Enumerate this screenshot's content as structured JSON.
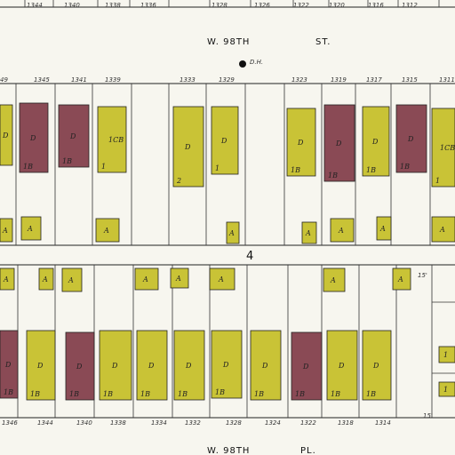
{
  "streets": {
    "top": "W. 98TH",
    "top_suffix": "ST.",
    "bottom": "W. 98TH",
    "bottom_suffix": "PL."
  },
  "block_number": "4",
  "marker_label": "D.H.",
  "colors": {
    "dwelling_yellow": "#c9c336",
    "brick_maroon": "#8a4a55",
    "paper": "#f7f6ef",
    "line": "#222222"
  },
  "top_numbers_north": [
    "1344",
    "1340",
    "1338",
    "1336",
    "1328",
    "1326",
    "1322",
    "1320",
    "1316",
    "1312"
  ],
  "top_numbers_south": [
    "49",
    "1345",
    "1341",
    "1339",
    "1333",
    "1329",
    "1323",
    "1319",
    "1317",
    "1315",
    "1311"
  ],
  "bottom_numbers": [
    "1346",
    "1344",
    "1340",
    "1338",
    "1334",
    "1332",
    "1328",
    "1324",
    "1322",
    "1318",
    "1314"
  ],
  "frontage_label": "15'",
  "lot_codes": {
    "dwelling": "D",
    "small": "A",
    "one_half": "1B",
    "one_half_c": "1CB",
    "stories_one": "1",
    "stories_two": "2"
  }
}
